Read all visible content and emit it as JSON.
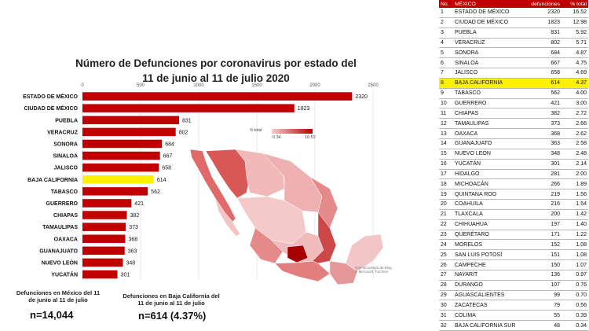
{
  "title": {
    "line1": "Número de Defunciones por coronavirus por estado del",
    "line2": "11 de junio al 11 de julio 2020"
  },
  "colors": {
    "bar": "#c00000",
    "highlight": "#fff200",
    "header": "#c00000"
  },
  "chart_data": {
    "type": "bar",
    "orientation": "horizontal",
    "categories": [
      "ESTADO DE MÉXICO",
      "CIUDAD DE MÉXICO",
      "PUEBLA",
      "VERACRUZ",
      "SONORA",
      "SINALOA",
      "JALISCO",
      "BAJA CALIFORNIA",
      "TABASCO",
      "GUERRERO",
      "CHIAPAS",
      "TAMAULIPAS",
      "OAXACA",
      "GUANAJUATO",
      "NUEVO LEÓN",
      "YUCATÁN"
    ],
    "values": [
      2320,
      1823,
      831,
      802,
      684,
      667,
      658,
      614,
      562,
      421,
      382,
      373,
      368,
      363,
      348,
      301
    ],
    "highlight_index": 7,
    "xlim": [
      0,
      2500
    ],
    "xticks": [
      0,
      500,
      1000,
      1500,
      2000,
      2500
    ],
    "grid": true
  },
  "notes": {
    "left_label_1": "Defunciones en México del 11",
    "left_label_2": "de junio al 11 de julio",
    "left_value": "n=14,044",
    "right_label_1": "Defunciones en Baja California del",
    "right_label_2": "11 de junio al 11 de julio",
    "right_value": "n=614 (4.37%)"
  },
  "map": {
    "legend_title": "% total",
    "legend_min": "0.34",
    "legend_max": "16.52",
    "credit_1": "Con tecnología de Bing",
    "credit_2": "© Microsoft, TomTom"
  },
  "table": {
    "headers": {
      "no": "No.",
      "state": "MÉXICO",
      "deaths": "defunciones",
      "pct": "% total"
    },
    "highlight_index": 7,
    "rows": [
      {
        "no": "1",
        "state": "ESTADO DE MÉXICO",
        "deaths": "2320",
        "pct": "16.52"
      },
      {
        "no": "2",
        "state": "CIUDAD DE MÉXICO",
        "deaths": "1823",
        "pct": "12.98"
      },
      {
        "no": "3",
        "state": "PUEBLA",
        "deaths": "831",
        "pct": "5.92"
      },
      {
        "no": "4",
        "state": "VERACRUZ",
        "deaths": "802",
        "pct": "5.71"
      },
      {
        "no": "5",
        "state": "SONORA",
        "deaths": "684",
        "pct": "4.87"
      },
      {
        "no": "6",
        "state": "SINALOA",
        "deaths": "667",
        "pct": "4.75"
      },
      {
        "no": "7",
        "state": "JALISCO",
        "deaths": "658",
        "pct": "4.69"
      },
      {
        "no": "8",
        "state": "BAJA CALIFORNIA",
        "deaths": "614",
        "pct": "4.37"
      },
      {
        "no": "9",
        "state": "TABASCO",
        "deaths": "562",
        "pct": "4.00"
      },
      {
        "no": "10",
        "state": "GUERRERO",
        "deaths": "421",
        "pct": "3.00"
      },
      {
        "no": "11",
        "state": "CHIAPAS",
        "deaths": "382",
        "pct": "2.72"
      },
      {
        "no": "12",
        "state": "TAMAULIPAS",
        "deaths": "373",
        "pct": "2.66"
      },
      {
        "no": "13",
        "state": "OAXACA",
        "deaths": "368",
        "pct": "2.62"
      },
      {
        "no": "14",
        "state": "GUANAJUATO",
        "deaths": "363",
        "pct": "2.58"
      },
      {
        "no": "15",
        "state": "NUEVO LEÓN",
        "deaths": "348",
        "pct": "2.48"
      },
      {
        "no": "16",
        "state": "YUCATÁN",
        "deaths": "301",
        "pct": "2.14"
      },
      {
        "no": "17",
        "state": "HIDALGO",
        "deaths": "281",
        "pct": "2.00"
      },
      {
        "no": "18",
        "state": "MICHOACÁN",
        "deaths": "266",
        "pct": "1.89"
      },
      {
        "no": "19",
        "state": "QUINTANA ROO",
        "deaths": "219",
        "pct": "1.56"
      },
      {
        "no": "20",
        "state": "COAHUILA",
        "deaths": "216",
        "pct": "1.54"
      },
      {
        "no": "21",
        "state": "TLAXCALA",
        "deaths": "200",
        "pct": "1.42"
      },
      {
        "no": "22",
        "state": "CHIHUAHUA",
        "deaths": "197",
        "pct": "1.40"
      },
      {
        "no": "23",
        "state": "QUERÉTARO",
        "deaths": "171",
        "pct": "1.22"
      },
      {
        "no": "24",
        "state": "MORELOS",
        "deaths": "152",
        "pct": "1.08"
      },
      {
        "no": "25",
        "state": "SAN LUIS POTOSÍ",
        "deaths": "151",
        "pct": "1.08"
      },
      {
        "no": "26",
        "state": "CAMPECHE",
        "deaths": "150",
        "pct": "1.07"
      },
      {
        "no": "27",
        "state": "NAYARIT",
        "deaths": "136",
        "pct": "0.97"
      },
      {
        "no": "28",
        "state": "DURANGO",
        "deaths": "107",
        "pct": "0.76"
      },
      {
        "no": "29",
        "state": "AGUASCALIENTES",
        "deaths": "99",
        "pct": "0.70"
      },
      {
        "no": "30",
        "state": "ZACATECAS",
        "deaths": "79",
        "pct": "0.56"
      },
      {
        "no": "31",
        "state": "COLIMA",
        "deaths": "55",
        "pct": "0.39"
      },
      {
        "no": "32",
        "state": "BAJA CALIFORNIA SUR",
        "deaths": "48",
        "pct": "0.34"
      }
    ]
  }
}
